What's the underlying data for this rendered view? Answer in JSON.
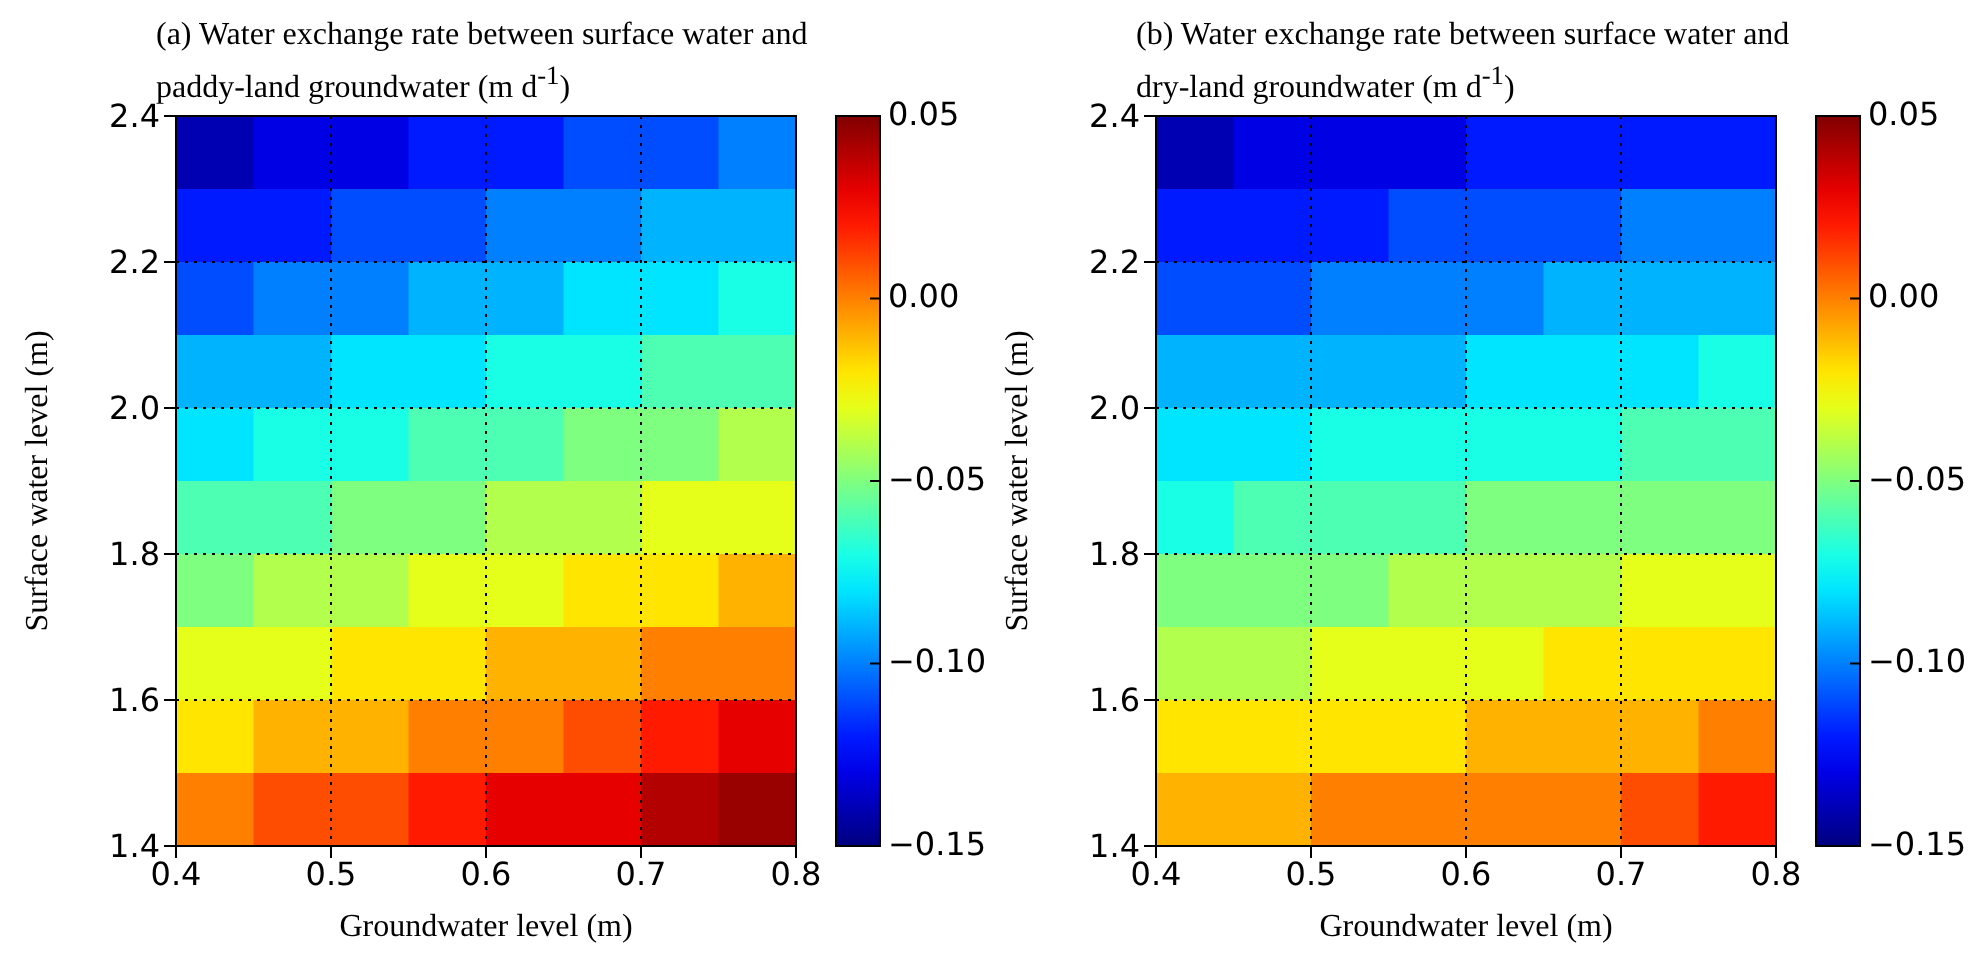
{
  "chart_data": [
    {
      "type": "heatmap",
      "title": "(a) Water exchange rate between surface water and paddy-land groundwater (m d$^{-1}$)",
      "xlabel": "Groundwater level (m)",
      "ylabel": "Surface water level (m)",
      "x": [
        0.425,
        0.475,
        0.525,
        0.575,
        0.625,
        0.675,
        0.725,
        0.775
      ],
      "y": [
        2.35,
        2.25,
        2.15,
        2.05,
        1.95,
        1.85,
        1.75,
        1.65,
        1.55,
        1.45
      ],
      "cells": [
        [
          -0.14,
          -0.13,
          -0.13,
          -0.12,
          -0.12,
          -0.11,
          -0.11,
          -0.1
        ],
        [
          -0.12,
          -0.12,
          -0.11,
          -0.11,
          -0.1,
          -0.1,
          -0.09,
          -0.09
        ],
        [
          -0.11,
          -0.1,
          -0.1,
          -0.09,
          -0.09,
          -0.08,
          -0.08,
          -0.07
        ],
        [
          -0.09,
          -0.09,
          -0.08,
          -0.08,
          -0.07,
          -0.07,
          -0.06,
          -0.06
        ],
        [
          -0.08,
          -0.07,
          -0.07,
          -0.06,
          -0.06,
          -0.05,
          -0.05,
          -0.04
        ],
        [
          -0.06,
          -0.06,
          -0.05,
          -0.05,
          -0.04,
          -0.04,
          -0.03,
          -0.03
        ],
        [
          -0.05,
          -0.04,
          -0.04,
          -0.03,
          -0.03,
          -0.02,
          -0.02,
          -0.01
        ],
        [
          -0.03,
          -0.03,
          -0.02,
          -0.02,
          -0.01,
          -0.01,
          0.0,
          0.0
        ],
        [
          -0.02,
          -0.01,
          -0.01,
          0.0,
          0.0,
          0.01,
          0.02,
          0.03
        ],
        [
          0.0,
          0.01,
          0.01,
          0.02,
          0.03,
          0.03,
          0.04,
          0.045
        ]
      ],
      "clim": [
        -0.15,
        0.05
      ],
      "cticks": [
        {
          "value": -0.15,
          "label": "−0.15"
        },
        {
          "value": -0.1,
          "label": "−0.10"
        },
        {
          "value": -0.05,
          "label": "−0.05"
        },
        {
          "value": 0,
          "label": "0.00"
        },
        0.05
      ],
      "xlim": [
        0.4,
        0.8
      ],
      "xticks": [
        0.4,
        0.5,
        0.6,
        0.7,
        0.8
      ],
      "ylim": [
        1.4,
        2.4
      ],
      "yticks": [
        1.4,
        1.6,
        1.8,
        {
          "value": 2,
          "label": "2.0"
        },
        2.2,
        2.4
      ],
      "grid": true
    },
    {
      "type": "heatmap",
      "title": "(b) Water exchange rate between surface water and dry-land groundwater (m d$^{-1}$)",
      "xlabel": "Groundwater level (m)",
      "ylabel": "Surface water level (m)",
      "x": [
        0.425,
        0.475,
        0.525,
        0.575,
        0.625,
        0.675,
        0.725,
        0.775
      ],
      "y": [
        2.35,
        2.25,
        2.15,
        2.05,
        1.95,
        1.85,
        1.75,
        1.65,
        1.55,
        1.45
      ],
      "cells": [
        [
          -0.14,
          -0.13,
          -0.13,
          -0.13,
          -0.12,
          -0.12,
          -0.12,
          -0.12
        ],
        [
          -0.12,
          -0.12,
          -0.12,
          -0.11,
          -0.11,
          -0.11,
          -0.1,
          -0.1
        ],
        [
          -0.11,
          -0.11,
          -0.1,
          -0.1,
          -0.1,
          -0.09,
          -0.09,
          -0.09
        ],
        [
          -0.09,
          -0.09,
          -0.09,
          -0.09,
          -0.08,
          -0.08,
          -0.08,
          -0.07
        ],
        [
          -0.08,
          -0.08,
          -0.07,
          -0.07,
          -0.07,
          -0.07,
          -0.06,
          -0.06
        ],
        [
          -0.07,
          -0.06,
          -0.06,
          -0.06,
          -0.05,
          -0.05,
          -0.05,
          -0.05
        ],
        [
          -0.05,
          -0.05,
          -0.05,
          -0.04,
          -0.04,
          -0.04,
          -0.03,
          -0.03
        ],
        [
          -0.04,
          -0.04,
          -0.03,
          -0.03,
          -0.03,
          -0.02,
          -0.02,
          -0.02
        ],
        [
          -0.02,
          -0.02,
          -0.02,
          -0.02,
          -0.01,
          -0.01,
          -0.01,
          0.0
        ],
        [
          -0.01,
          -0.01,
          0.0,
          0.0,
          0.0,
          0.0,
          0.01,
          0.02
        ]
      ],
      "clim": [
        -0.15,
        0.05
      ],
      "cticks": [
        {
          "value": -0.15,
          "label": "−0.15"
        },
        {
          "value": -0.1,
          "label": "−0.10"
        },
        {
          "value": -0.05,
          "label": "−0.05"
        },
        {
          "value": 0,
          "label": "0.00"
        },
        0.05
      ],
      "xlim": [
        0.4,
        0.8
      ],
      "xticks": [
        0.4,
        0.5,
        0.6,
        0.7,
        0.8
      ],
      "ylim": [
        1.4,
        2.4
      ],
      "yticks": [
        1.4,
        1.6,
        1.8,
        {
          "value": 2,
          "label": "2.0"
        },
        2.2,
        2.4
      ],
      "grid": true
    }
  ]
}
